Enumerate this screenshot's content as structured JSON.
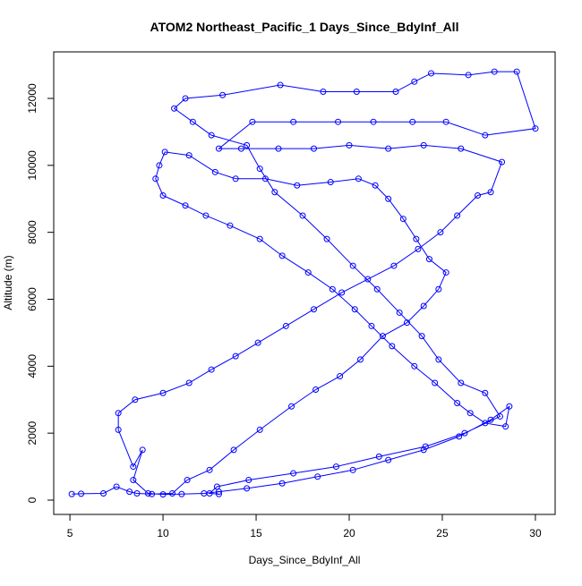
{
  "chart_data": {
    "type": "line",
    "title": "ATOM2 Northeast_Pacific_1 Days_Since_BdyInf_All",
    "x_label": "Days_Since_BdyInf_All",
    "y_label": "Altitude (m)",
    "xlim": [
      4.13,
      31.06
    ],
    "ylim": [
      -428,
      13390
    ],
    "xticks": [
      5,
      10,
      15,
      20,
      25,
      30
    ],
    "yticks": [
      0,
      2000,
      4000,
      6000,
      8000,
      10000,
      12000
    ],
    "series": [
      {
        "color": "#0000ff",
        "x": [
          5.1,
          5.6,
          6.8,
          7.5,
          8.2,
          8.6,
          9.4,
          10.5,
          11.3,
          12.5,
          13.8,
          15.2,
          16.9,
          18.2,
          19.5,
          20.6,
          21.8,
          23.1,
          24.0,
          24.8,
          25.2,
          24.3,
          23.6,
          22.9,
          22.1,
          21.4,
          20.5,
          19.0,
          17.2,
          15.5,
          13.9,
          12.8,
          11.4,
          10.1,
          9.8,
          9.6,
          10.0,
          11.2,
          12.3,
          13.6,
          15.2,
          16.4,
          17.8,
          19.1,
          20.3,
          21.2,
          22.3,
          23.5,
          24.6,
          25.8,
          26.5,
          27.3,
          28.4,
          28.6,
          27.6,
          25.9,
          24.0,
          22.1,
          20.2,
          18.3,
          16.4,
          14.5,
          13.0,
          12.2,
          11.0,
          10.0,
          9.2,
          8.4,
          8.9,
          8.4,
          7.6,
          7.6,
          8.5,
          10.0,
          11.4,
          12.6,
          13.9,
          15.1,
          16.6,
          18.1,
          19.6,
          21.0,
          22.4,
          23.7,
          24.9,
          25.8,
          26.9,
          27.6,
          28.2,
          26.0,
          24.0,
          22.1,
          20.0,
          18.1,
          16.2,
          14.2,
          13.0,
          14.8,
          17.0,
          19.4,
          21.3,
          23.4,
          25.2,
          27.3,
          30.0,
          29.0,
          27.8,
          26.4,
          24.4,
          23.5,
          22.5,
          20.4,
          18.6,
          16.3,
          13.2,
          11.2,
          10.6,
          11.6,
          12.6,
          14.5,
          15.2,
          16.0,
          17.5,
          18.8,
          20.2,
          21.5,
          22.7,
          23.9,
          24.8,
          26.0,
          27.3,
          28.1,
          26.2,
          24.1,
          21.6,
          19.3,
          17.0,
          14.6,
          12.9,
          12.5,
          13.0
        ],
        "values": [
          180,
          190,
          200,
          400,
          250,
          200,
          180,
          200,
          600,
          900,
          1500,
          2100,
          2800,
          3300,
          3700,
          4200,
          4900,
          5300,
          5800,
          6300,
          6800,
          7200,
          7800,
          8400,
          9000,
          9400,
          9600,
          9500,
          9400,
          9600,
          9600,
          9800,
          10300,
          10400,
          10000,
          9600,
          9100,
          8800,
          8500,
          8200,
          7800,
          7300,
          6800,
          6300,
          5700,
          5200,
          4600,
          4000,
          3500,
          2900,
          2600,
          2300,
          2200,
          2800,
          2400,
          1900,
          1500,
          1200,
          900,
          700,
          500,
          350,
          250,
          200,
          180,
          170,
          200,
          600,
          1500,
          1000,
          2100,
          2600,
          3000,
          3200,
          3500,
          3900,
          4300,
          4700,
          5200,
          5700,
          6200,
          6600,
          7000,
          7500,
          8000,
          8500,
          9100,
          9200,
          10100,
          10500,
          10600,
          10500,
          10600,
          10500,
          10500,
          10500,
          10500,
          11300,
          11300,
          11300,
          11300,
          11300,
          11300,
          10900,
          11100,
          12800,
          12800,
          12700,
          12750,
          12500,
          12200,
          12200,
          12200,
          12400,
          12100,
          12000,
          11700,
          11300,
          10900,
          10600,
          9900,
          9200,
          8500,
          7800,
          7000,
          6300,
          5600,
          4900,
          4200,
          3500,
          3200,
          2500,
          2000,
          1600,
          1300,
          1000,
          800,
          600,
          400,
          200,
          180
        ]
      }
    ]
  }
}
